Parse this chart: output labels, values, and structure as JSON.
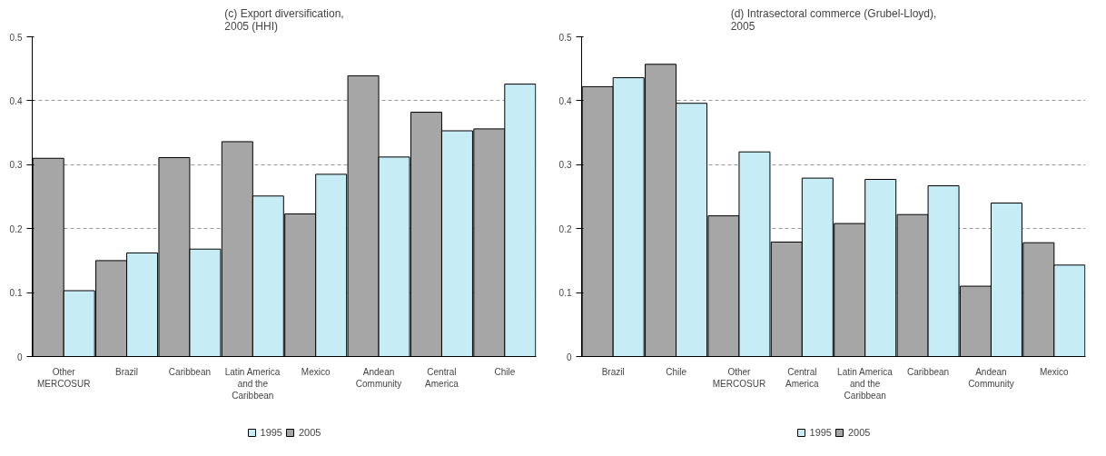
{
  "chart_data": [
    {
      "type": "bar",
      "title": "(c) Export diversification, 2005 (HHI)",
      "categories": [
        "Other MERCOSUR",
        "Brazil",
        "Caribbean",
        "Latin America and the Caribbean",
        "Mexico",
        "Andean Community",
        "Central America",
        "Chile"
      ],
      "series": [
        {
          "name": "2005",
          "color": "#a6a6a6",
          "values": [
            0.31,
            0.15,
            0.311,
            0.336,
            0.223,
            0.439,
            0.382,
            0.356
          ]
        },
        {
          "name": "1995",
          "color": "#c6ecf6",
          "values": [
            0.103,
            0.162,
            0.168,
            0.251,
            0.285,
            0.312,
            0.353,
            0.426
          ]
        }
      ],
      "ylim": [
        0,
        0.5
      ],
      "yticks": [
        0,
        0.1,
        0.2,
        0.3,
        0.4,
        0.5
      ],
      "grid": "y",
      "legend": "bottom"
    },
    {
      "type": "bar",
      "title": "(d) Intrasectoral commerce (Grubel-Lloyd), 2005",
      "categories": [
        "Brazil",
        "Chile",
        "Other MERCOSUR",
        "Central America",
        "Latin America and the Caribbean",
        "Caribbean",
        "Andean Community",
        "Mexico"
      ],
      "series": [
        {
          "name": "2005",
          "color": "#a6a6a6",
          "values": [
            0.422,
            0.457,
            0.22,
            0.179,
            0.208,
            0.222,
            0.11,
            0.178
          ]
        },
        {
          "name": "1995",
          "color": "#c6ecf6",
          "values": [
            0.436,
            0.396,
            0.32,
            0.279,
            0.277,
            0.267,
            0.24,
            0.143
          ]
        }
      ],
      "ylim": [
        0,
        0.5
      ],
      "yticks": [
        0,
        0.1,
        0.2,
        0.3,
        0.4,
        0.5
      ],
      "grid": "y",
      "legend": "bottom"
    }
  ]
}
